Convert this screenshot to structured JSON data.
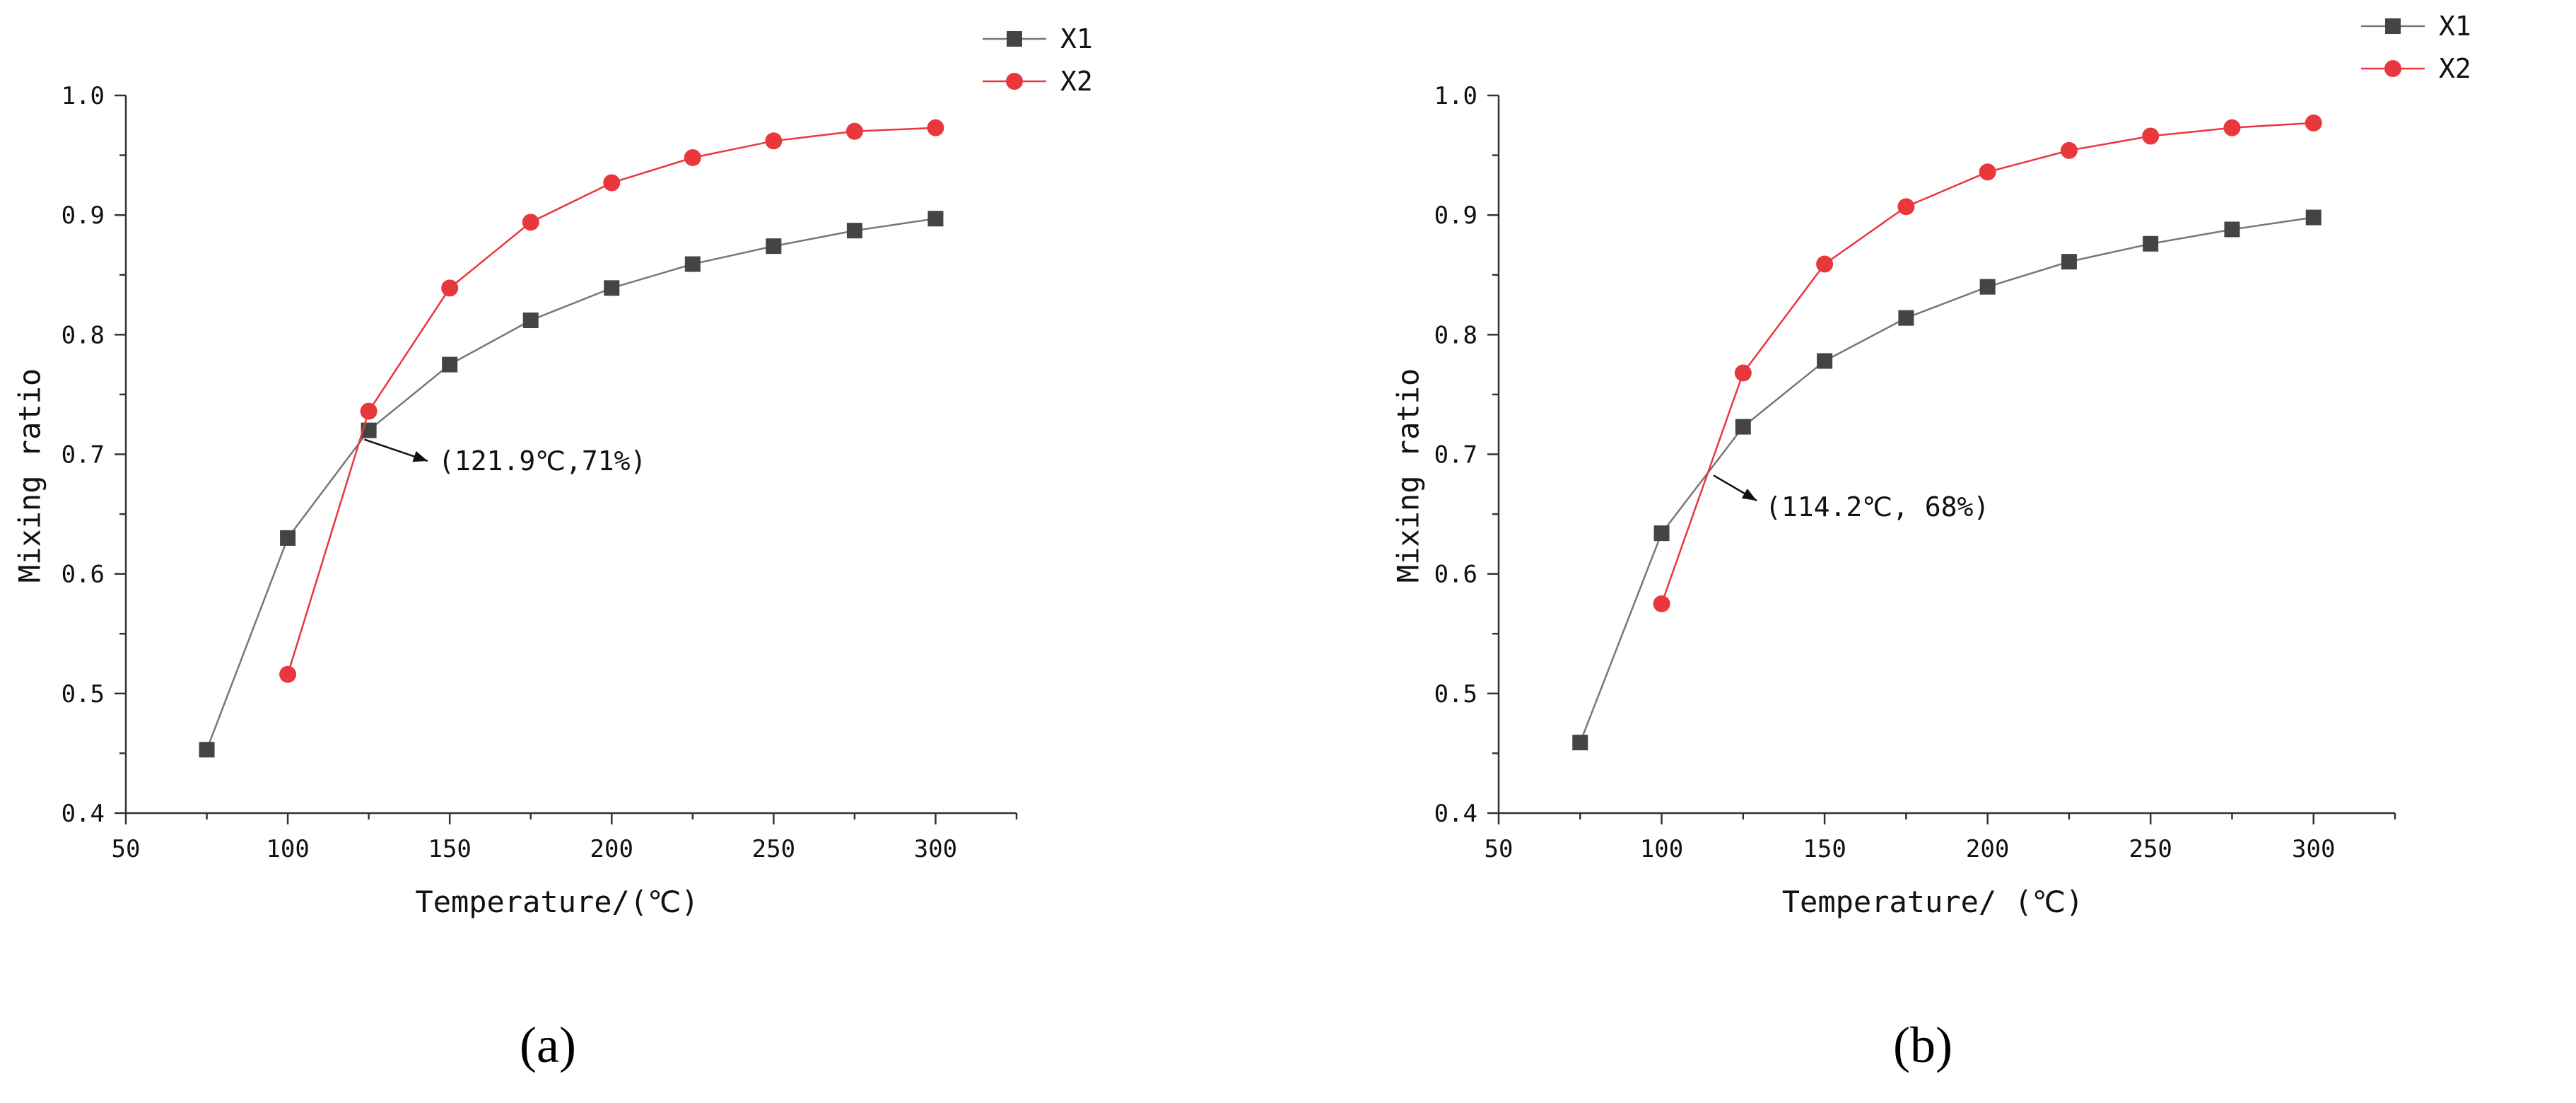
{
  "chart_data": [
    {
      "type": "line",
      "panel_label": "(a)",
      "xlabel": "Temperature/(℃)",
      "ylabel": "Mixing ratio",
      "xlim": [
        50,
        325
      ],
      "ylim": [
        0.4,
        1.0
      ],
      "xticks": [
        "50",
        "100",
        "150",
        "200",
        "250",
        "300"
      ],
      "yticks": [
        "0.4",
        "0.5",
        "0.6",
        "0.7",
        "0.8",
        "0.9",
        "1.0"
      ],
      "legend_position": "top-right",
      "grid": false,
      "series": [
        {
          "name": "X1",
          "color": "#444444",
          "line_color": "#777777",
          "marker": "square",
          "x": [
            75,
            100,
            125,
            150,
            175,
            200,
            225,
            250,
            275,
            300
          ],
          "y": [
            0.453,
            0.63,
            0.72,
            0.775,
            0.812,
            0.839,
            0.859,
            0.874,
            0.887,
            0.897
          ]
        },
        {
          "name": "X2",
          "color": "#e8383d",
          "line_color": "#e8383d",
          "marker": "circle",
          "x": [
            100,
            125,
            150,
            175,
            200,
            225,
            250,
            275,
            300
          ],
          "y": [
            0.516,
            0.736,
            0.839,
            0.894,
            0.927,
            0.948,
            0.962,
            0.97,
            0.973
          ]
        }
      ],
      "annotation": {
        "text": "(121.9℃,71%)",
        "x": 121.9,
        "y": 0.71
      }
    },
    {
      "type": "line",
      "panel_label": "(b)",
      "xlabel": "Temperature/ (℃)",
      "ylabel": "Mixing ratio",
      "xlim": [
        50,
        325
      ],
      "ylim": [
        0.4,
        1.0
      ],
      "xticks": [
        "50",
        "100",
        "150",
        "200",
        "250",
        "300"
      ],
      "yticks": [
        "0.4",
        "0.5",
        "0.6",
        "0.7",
        "0.8",
        "0.9",
        "1.0"
      ],
      "legend_position": "top-right",
      "grid": false,
      "series": [
        {
          "name": "X1",
          "color": "#444444",
          "line_color": "#777777",
          "marker": "square",
          "x": [
            75,
            100,
            125,
            150,
            175,
            200,
            225,
            250,
            275,
            300
          ],
          "y": [
            0.459,
            0.634,
            0.723,
            0.778,
            0.814,
            0.84,
            0.861,
            0.876,
            0.888,
            0.898
          ]
        },
        {
          "name": "X2",
          "color": "#e8383d",
          "line_color": "#e8383d",
          "marker": "circle",
          "x": [
            100,
            125,
            150,
            175,
            200,
            225,
            250,
            275,
            300
          ],
          "y": [
            0.575,
            0.768,
            0.859,
            0.907,
            0.936,
            0.954,
            0.966,
            0.973,
            0.977
          ]
        }
      ],
      "annotation": {
        "text": "(114.2℃, 68%)",
        "x": 114.2,
        "y": 0.68
      }
    }
  ]
}
